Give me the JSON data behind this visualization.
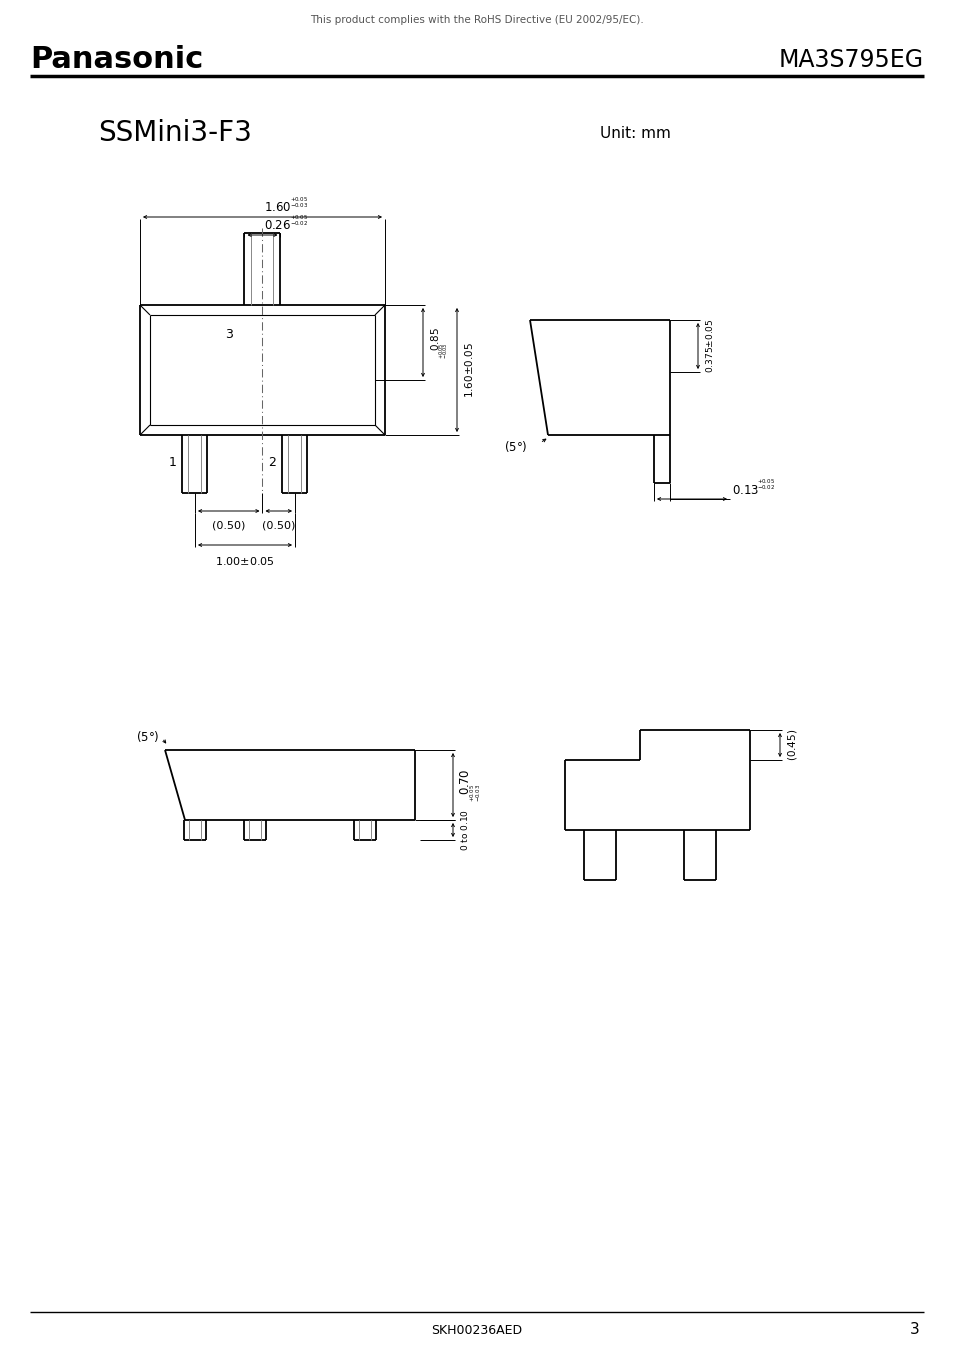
{
  "page_title_top": "This product complies with the RoHS Directive (EU 2002/95/EC).",
  "brand": "Panasonic",
  "part_number": "MA3S795EG",
  "drawing_title": "SSMini3-F3",
  "unit_label": "Unit: mm",
  "footer_code": "SKH00236AED",
  "footer_page": "3",
  "bg_color": "#ffffff",
  "line_color": "#000000"
}
